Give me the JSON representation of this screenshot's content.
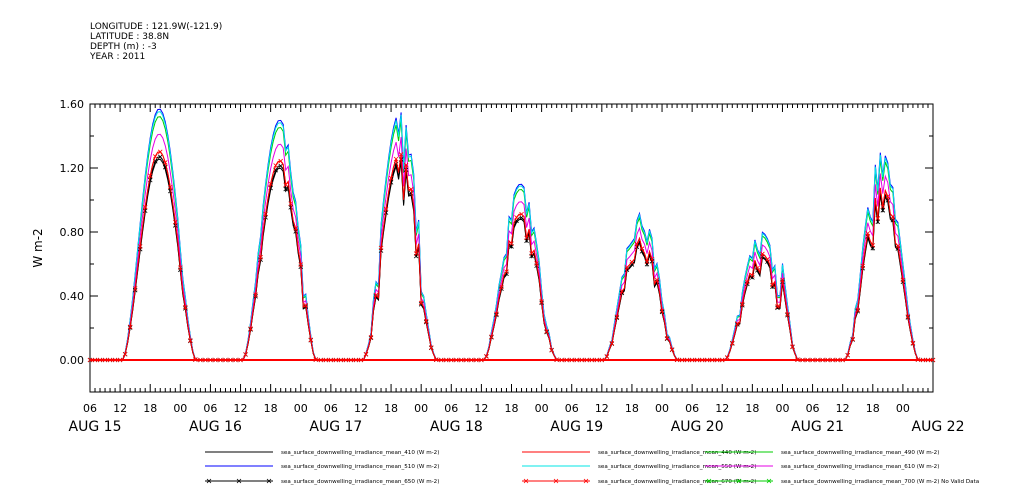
{
  "header": {
    "lines": [
      "LONGITUDE : 121.9W(-121.9)",
      "LATITUDE : 38.8N",
      "DEPTH (m) : -3",
      "YEAR : 2011"
    ]
  },
  "chart_data": {
    "type": "line",
    "ylabel": "W m-2",
    "ylim": [
      -0.2,
      1.6
    ],
    "yticks": [
      "0.00",
      "0.40",
      "0.80",
      "1.20",
      "1.60"
    ],
    "ytick_values": [
      0.0,
      0.4,
      0.8,
      1.2,
      1.6
    ],
    "xhour_labels": [
      "06",
      "12",
      "18",
      "00",
      "06",
      "12",
      "18",
      "00",
      "06",
      "12",
      "18",
      "00",
      "06",
      "12",
      "18",
      "00",
      "06",
      "12",
      "18",
      "00",
      "06",
      "12",
      "18",
      "00",
      "06",
      "12",
      "18",
      "00"
    ],
    "xday_labels": [
      "AUG 15",
      "AUG 16",
      "AUG 17",
      "AUG 18",
      "AUG 19",
      "AUG 20",
      "AUG 21",
      "AUG 22"
    ],
    "x_start": "2011-08-15 06:00",
    "x_end": "2011-08-22 06:00",
    "grid": false,
    "daily_peaks": [
      {
        "day": "2011-08-15",
        "peak": 1.57,
        "noise": 0.0
      },
      {
        "day": "2011-08-16",
        "peak": 1.5,
        "noise": 0.08
      },
      {
        "day": "2011-08-17",
        "peak": 1.55,
        "noise": 0.35
      },
      {
        "day": "2011-08-18",
        "peak": 1.1,
        "noise": 0.18
      },
      {
        "day": "2011-08-19",
        "peak": 0.95,
        "noise": 0.2
      },
      {
        "day": "2011-08-20",
        "peak": 0.8,
        "noise": 0.25
      },
      {
        "day": "2011-08-21",
        "peak": 1.3,
        "noise": 0.25
      }
    ],
    "series": [
      {
        "name": "sea_surface_downwelling_irradiance_mean_410 (W m-2)",
        "color": "#000000",
        "scale": 0.8,
        "marker": "none"
      },
      {
        "name": "sea_surface_downwelling_irradiance_mean_440 (W m-2)",
        "color": "#ff0000",
        "scale": 0.83,
        "marker": "none"
      },
      {
        "name": "sea_surface_downwelling_irradiance_mean_490 (W m-2)",
        "color": "#00cc00",
        "scale": 0.97,
        "marker": "none"
      },
      {
        "name": "sea_surface_downwelling_irradiance_mean_510 (W m-2)",
        "color": "#0000ff",
        "scale": 1.0,
        "marker": "none"
      },
      {
        "name": "sea_surface_downwelling_irradiance_mean_550 (W m-2)",
        "color": "#00e5e5",
        "scale": 0.99,
        "marker": "none"
      },
      {
        "name": "sea_surface_downwelling_irradiance_mean_610 (W m-2)",
        "color": "#e500e5",
        "scale": 0.9,
        "marker": "none"
      },
      {
        "name": "sea_surface_downwelling_irradiance_mean_650 (W m-2)",
        "color": "#000000",
        "scale": 0.81,
        "marker": "x"
      },
      {
        "name": "sea_surface_downwelling_irradiance_mean_670 (W m-2)",
        "color": "#ff0000",
        "scale": 0.83,
        "marker": "x"
      },
      {
        "name": "sea_surface_downwelling_irradiance_mean_700 (W m-2) No Valid Data",
        "color": "#00cc00",
        "scale": 0,
        "marker": "x"
      }
    ]
  }
}
